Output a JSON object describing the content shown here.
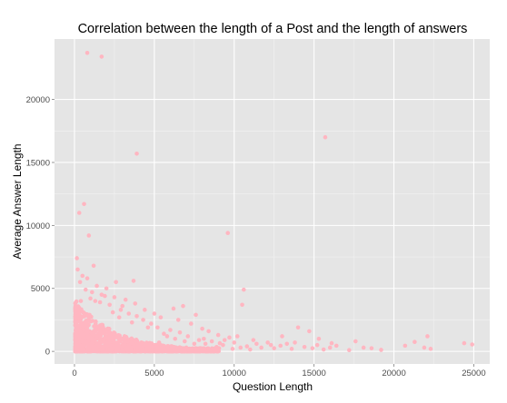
{
  "chart_data": {
    "type": "scatter",
    "title": "Correlation between the length of a Post and the length of answers",
    "xlabel": "Question Length",
    "ylabel": "Average Answer Length",
    "xlim": [
      -1250,
      26000
    ],
    "ylim": [
      -1000,
      24800
    ],
    "x_ticks": [
      0,
      5000,
      10000,
      15000,
      20000,
      25000
    ],
    "y_ticks": [
      0,
      5000,
      10000,
      15000,
      20000
    ],
    "x_tick_labels": [
      "0",
      "5000",
      "10000",
      "15000",
      "20000",
      "25000"
    ],
    "y_tick_labels": [
      "0",
      "5000",
      "10000",
      "15000",
      "20000"
    ],
    "grid": true,
    "legend": "none",
    "point_color": "#ffb6c1",
    "panel_color": "#e5e5e5",
    "grid_color": "#ffffff",
    "points": [
      [
        800,
        23700
      ],
      [
        1700,
        23400
      ],
      [
        3900,
        15700
      ],
      [
        15700,
        17000
      ],
      [
        9600,
        9400
      ],
      [
        600,
        11700
      ],
      [
        300,
        11000
      ],
      [
        900,
        9200
      ],
      [
        10600,
        4900
      ],
      [
        10500,
        3700
      ],
      [
        150,
        7400
      ],
      [
        1200,
        6800
      ],
      [
        200,
        6500
      ],
      [
        500,
        6000
      ],
      [
        3700,
        5600
      ],
      [
        2600,
        5500
      ],
      [
        1400,
        5200
      ],
      [
        2000,
        5000
      ],
      [
        700,
        4900
      ],
      [
        1100,
        4700
      ],
      [
        1900,
        4400
      ],
      [
        2500,
        4300
      ],
      [
        3200,
        4100
      ],
      [
        3000,
        3600
      ],
      [
        3800,
        3800
      ],
      [
        4400,
        3300
      ],
      [
        5000,
        3000
      ],
      [
        5400,
        2700
      ],
      [
        6200,
        3400
      ],
      [
        6800,
        3600
      ],
      [
        7600,
        2900
      ],
      [
        6500,
        2500
      ],
      [
        7300,
        2200
      ],
      [
        8000,
        1800
      ],
      [
        8400,
        1600
      ],
      [
        9000,
        1300
      ],
      [
        9700,
        1100
      ],
      [
        10200,
        1200
      ],
      [
        11200,
        900
      ],
      [
        12100,
        700
      ],
      [
        13000,
        1200
      ],
      [
        13300,
        600
      ],
      [
        14000,
        1900
      ],
      [
        14700,
        1600
      ],
      [
        15200,
        500
      ],
      [
        16000,
        300
      ],
      [
        17600,
        800
      ],
      [
        18100,
        300
      ],
      [
        18600,
        250
      ],
      [
        20700,
        450
      ],
      [
        21300,
        750
      ],
      [
        21900,
        300
      ],
      [
        22100,
        1200
      ],
      [
        22300,
        200
      ],
      [
        24400,
        650
      ],
      [
        24900,
        550
      ],
      [
        8600,
        800
      ],
      [
        9300,
        500
      ],
      [
        10800,
        400
      ],
      [
        11700,
        300
      ],
      [
        12500,
        250
      ],
      [
        13600,
        200
      ],
      [
        14400,
        350
      ],
      [
        15600,
        150
      ],
      [
        16400,
        450
      ],
      [
        17200,
        100
      ],
      [
        19200,
        120
      ],
      [
        12900,
        450
      ],
      [
        11400,
        600
      ],
      [
        10000,
        700
      ],
      [
        9900,
        200
      ],
      [
        8900,
        350
      ],
      [
        8200,
        600
      ],
      [
        7800,
        900
      ],
      [
        7100,
        1200
      ],
      [
        6600,
        1500
      ],
      [
        6000,
        1700
      ],
      [
        5600,
        1400
      ],
      [
        5200,
        1900
      ],
      [
        4800,
        2200
      ],
      [
        4300,
        2500
      ],
      [
        3900,
        2800
      ],
      [
        3400,
        3000
      ],
      [
        2900,
        3300
      ],
      [
        2400,
        3100
      ],
      [
        2200,
        3700
      ],
      [
        1600,
        3900
      ],
      [
        1300,
        4000
      ],
      [
        1000,
        4200
      ],
      [
        400,
        4000
      ],
      [
        350,
        5500
      ],
      [
        800,
        5800
      ],
      [
        1700,
        4500
      ],
      [
        2800,
        2700
      ],
      [
        3600,
        2300
      ],
      [
        4600,
        1900
      ],
      [
        5800,
        1200
      ],
      [
        6300,
        1000
      ],
      [
        6900,
        800
      ],
      [
        7500,
        600
      ],
      [
        8700,
        200
      ],
      [
        9400,
        900
      ],
      [
        10400,
        300
      ],
      [
        11000,
        150
      ],
      [
        12300,
        500
      ],
      [
        13800,
        700
      ],
      [
        14900,
        250
      ],
      [
        15300,
        1000
      ],
      [
        16100,
        650
      ],
      [
        5300,
        700
      ],
      [
        6100,
        400
      ],
      [
        7000,
        300
      ],
      [
        7700,
        150
      ],
      [
        8100,
        1000
      ],
      [
        9100,
        650
      ]
    ]
  }
}
